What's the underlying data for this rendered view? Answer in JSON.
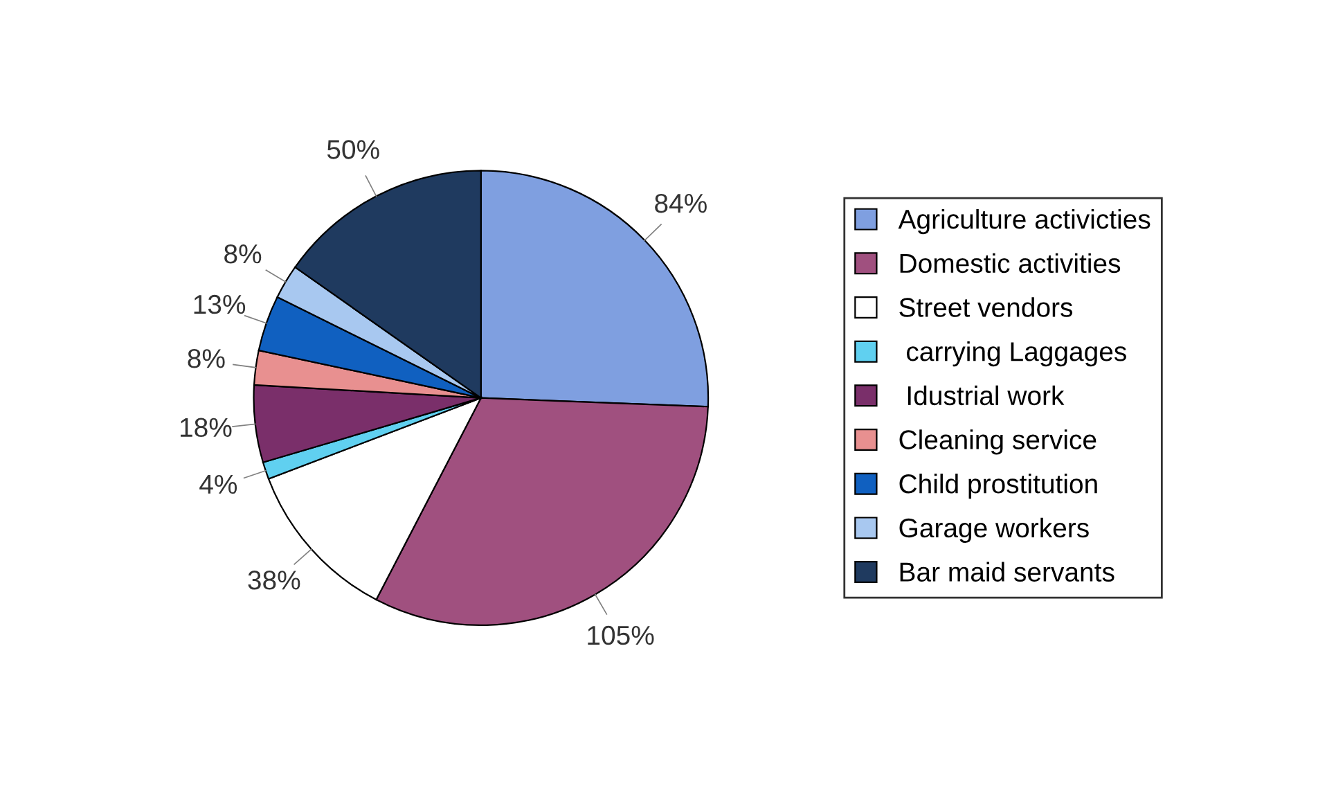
{
  "chart_data": {
    "type": "pie",
    "categories": [
      "Agriculture activicties",
      "Domestic activities",
      "Street vendors",
      " carrying Laggages",
      " Idustrial work",
      "Cleaning service",
      "Child prostitution",
      "Garage workers",
      "Bar maid servants"
    ],
    "values": [
      84,
      105,
      38,
      4,
      18,
      8,
      13,
      8,
      50
    ],
    "value_labels": [
      "84%",
      "105%",
      "38%",
      "4%",
      "18%",
      "8%",
      "13%",
      "8%",
      "50%"
    ],
    "colors": [
      "#7f9fe0",
      "#a0507f",
      "#ffffff",
      "#60d0f0",
      "#7a2f6a",
      "#e89090",
      "#1060c0",
      "#a8c8f0",
      "#1f3a5f"
    ],
    "legend": "right"
  }
}
